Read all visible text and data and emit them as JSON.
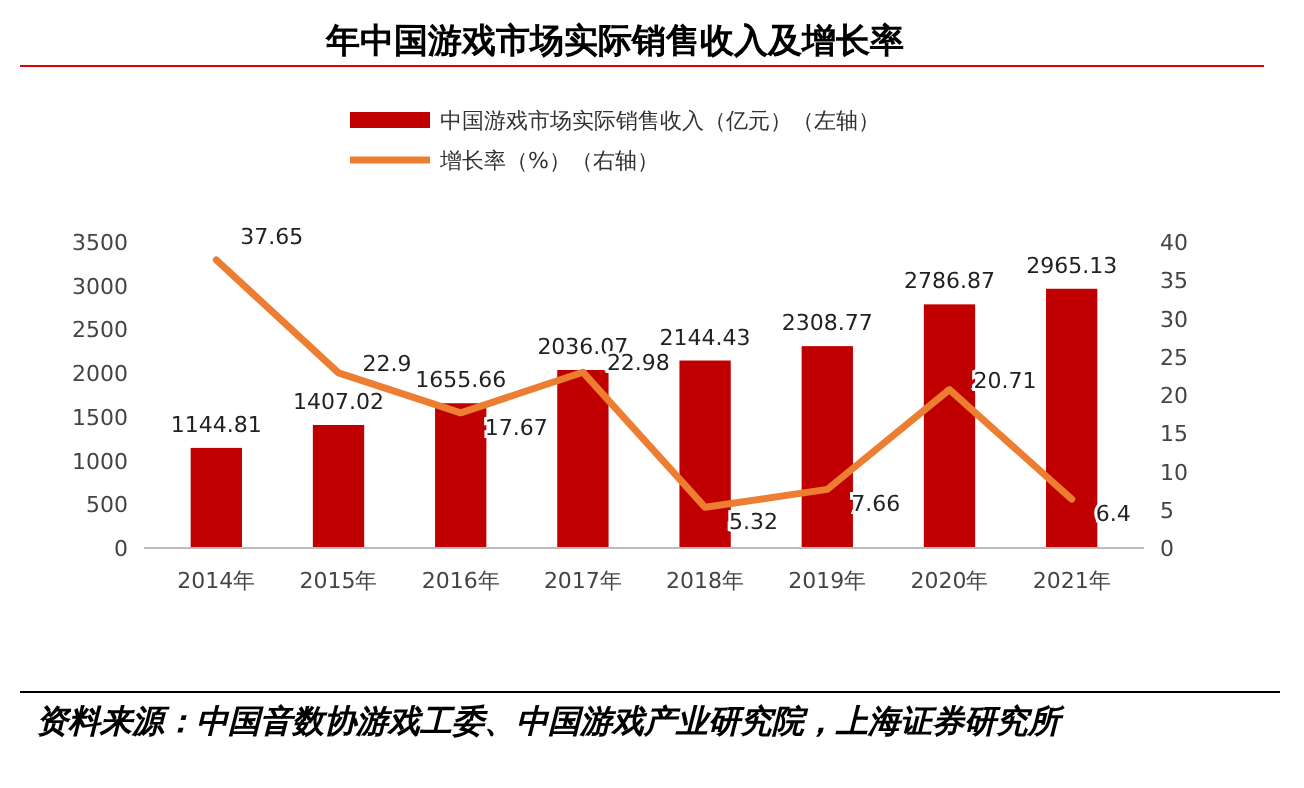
{
  "chart_data": {
    "type": "bar",
    "title": "年中国游戏市场实际销售收入及增长率",
    "categories": [
      "2014年",
      "2015年",
      "2016年",
      "2017年",
      "2018年",
      "2019年",
      "2020年",
      "2021年"
    ],
    "series": [
      {
        "name": "中国游戏市场实际销售收入（亿元）（左轴）",
        "color": "#c00000",
        "values": [
          1144.81,
          1407.02,
          1655.66,
          2036.07,
          2144.43,
          2308.77,
          2786.87,
          2965.13
        ]
      },
      {
        "name": "增长率（%）（右轴）",
        "type": "line",
        "axis": "y2",
        "color": "#ed7d31",
        "values": [
          37.65,
          22.9,
          17.67,
          22.98,
          5.32,
          7.66,
          20.71,
          6.4
        ]
      }
    ],
    "ylim": [
      0,
      3500
    ],
    "yticks": [
      0,
      500,
      1000,
      1500,
      2000,
      2500,
      3000,
      3500
    ],
    "y2lim": [
      0,
      40
    ],
    "y2ticks": [
      0,
      5,
      10,
      15,
      20,
      25,
      30,
      35,
      40
    ],
    "data_labels": true,
    "grid": false,
    "legend": "top",
    "marker": "none",
    "line_style": "solid",
    "annotations": [
      "资料来源：中国音数协游戏工委、中国游戏产业研究院，上海证券研究所"
    ]
  }
}
